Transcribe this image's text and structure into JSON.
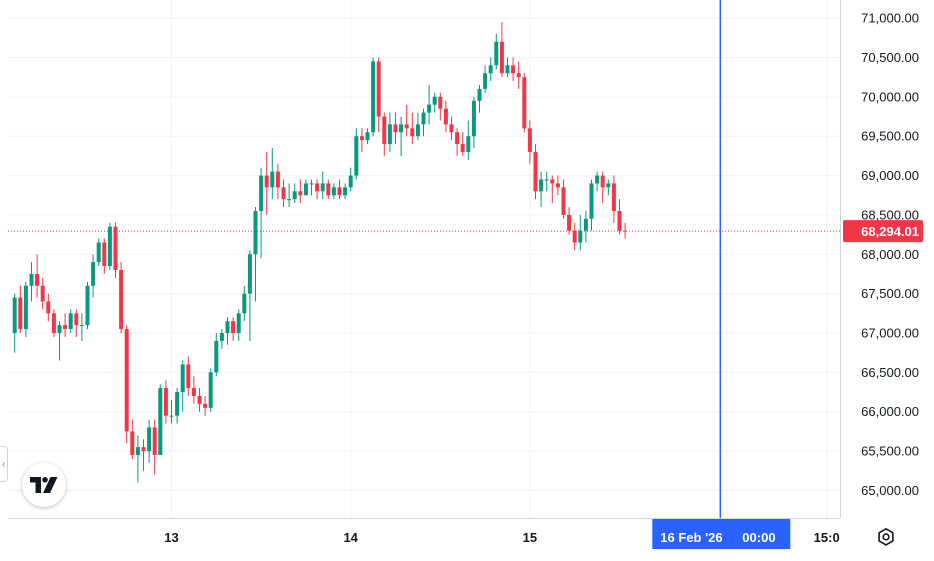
{
  "chart_data": {
    "type": "candlestick",
    "y_ticks": [
      "71,000.00",
      "70,500.00",
      "70,000.00",
      "69,500.00",
      "69,000.00",
      "68,500.00",
      "68,000.00",
      "67,500.00",
      "67,000.00",
      "66,500.00",
      "66,000.00",
      "65,500.00",
      "65,000.00"
    ],
    "y_tick_values": [
      71000,
      70500,
      70000,
      69500,
      69000,
      68500,
      68000,
      67500,
      67000,
      66500,
      66000,
      65500,
      65000
    ],
    "x_ticks": [
      {
        "label": "13",
        "bar_index": 28
      },
      {
        "label": "14",
        "bar_index": 60
      },
      {
        "label": "15",
        "bar_index": 92
      },
      {
        "label": "15:0",
        "bar_index": 145
      }
    ],
    "ylim": [
      64650,
      71230
    ],
    "grid": true,
    "current_price": 68294.01,
    "current_price_label": "68,294.01",
    "crosshair": {
      "bar_index": 126,
      "label_date": "16 Feb '26",
      "label_time": "00:00"
    },
    "candles": [
      [
        67000,
        67450,
        66750,
        67500
      ],
      [
        67450,
        67050,
        67000,
        67600
      ],
      [
        67050,
        67600,
        66950,
        67650
      ],
      [
        67600,
        67750,
        67400,
        67900
      ],
      [
        67750,
        67600,
        67450,
        68000
      ],
      [
        67600,
        67400,
        67300,
        67700
      ],
      [
        67400,
        67250,
        67150,
        67500
      ],
      [
        67250,
        67000,
        66950,
        67300
      ],
      [
        67000,
        67100,
        66650,
        67150
      ],
      [
        67100,
        67050,
        66950,
        67250
      ],
      [
        67050,
        67250,
        67000,
        67300
      ],
      [
        67250,
        67100,
        66950,
        67300
      ],
      [
        67100,
        67100,
        66900,
        67250
      ],
      [
        67100,
        67600,
        67050,
        67650
      ],
      [
        67600,
        67900,
        67450,
        68000
      ],
      [
        67900,
        68150,
        67850,
        68200
      ],
      [
        68150,
        67850,
        67750,
        68200
      ],
      [
        67850,
        68350,
        67800,
        68400
      ],
      [
        68350,
        67800,
        67700,
        68400
      ],
      [
        67800,
        67050,
        67000,
        67900
      ],
      [
        67050,
        65750,
        65600,
        67100
      ],
      [
        65750,
        65450,
        65400,
        65900
      ],
      [
        65450,
        65550,
        65100,
        65700
      ],
      [
        65550,
        65500,
        65250,
        65650
      ],
      [
        65500,
        65800,
        65350,
        65900
      ],
      [
        65800,
        65450,
        65200,
        65900
      ],
      [
        65450,
        66300,
        65450,
        66350
      ],
      [
        66300,
        65950,
        65850,
        66400
      ],
      [
        65950,
        65950,
        65850,
        66150
      ],
      [
        65950,
        66250,
        65850,
        66300
      ],
      [
        66250,
        66600,
        66000,
        66650
      ],
      [
        66600,
        66300,
        66200,
        66700
      ],
      [
        66300,
        66200,
        66100,
        66450
      ],
      [
        66200,
        66100,
        66000,
        66300
      ],
      [
        66100,
        66050,
        65950,
        66200
      ],
      [
        66050,
        66500,
        66000,
        66550
      ],
      [
        66500,
        66900,
        66450,
        67000
      ],
      [
        66900,
        67000,
        66800,
        67050
      ],
      [
        67000,
        67150,
        66850,
        67200
      ],
      [
        67150,
        67000,
        66900,
        67200
      ],
      [
        67000,
        67250,
        66900,
        67300
      ],
      [
        67250,
        67500,
        67150,
        67600
      ],
      [
        67500,
        68000,
        66900,
        68050
      ],
      [
        68000,
        68550,
        67400,
        68600
      ],
      [
        68550,
        69000,
        67950,
        69100
      ],
      [
        69000,
        68850,
        68500,
        69300
      ],
      [
        68850,
        69050,
        68700,
        69350
      ],
      [
        69050,
        68850,
        68700,
        69150
      ],
      [
        68850,
        68700,
        68600,
        68950
      ],
      [
        68700,
        68700,
        68600,
        68900
      ],
      [
        68700,
        68800,
        68650,
        68900
      ],
      [
        68800,
        68750,
        68650,
        68950
      ],
      [
        68750,
        68900,
        68750,
        68950
      ],
      [
        68900,
        68900,
        68750,
        68950
      ],
      [
        68900,
        68800,
        68700,
        68950
      ],
      [
        68800,
        68900,
        68700,
        69050
      ],
      [
        68900,
        68750,
        68700,
        68950
      ],
      [
        68750,
        68850,
        68700,
        68900
      ],
      [
        68850,
        68750,
        68700,
        68950
      ],
      [
        68750,
        68850,
        68700,
        68900
      ],
      [
        68850,
        69000,
        68800,
        69100
      ],
      [
        69000,
        69500,
        68950,
        69600
      ],
      [
        69500,
        69450,
        69300,
        69600
      ],
      [
        69450,
        69550,
        69400,
        69600
      ],
      [
        69550,
        70450,
        69500,
        70500
      ],
      [
        70450,
        69750,
        69550,
        70500
      ],
      [
        69750,
        69400,
        69250,
        69800
      ],
      [
        69400,
        69650,
        69300,
        69800
      ],
      [
        69650,
        69550,
        69400,
        69800
      ],
      [
        69550,
        69650,
        69250,
        69750
      ],
      [
        69650,
        69600,
        69500,
        69900
      ],
      [
        69600,
        69500,
        69400,
        69800
      ],
      [
        69500,
        69650,
        69450,
        69800
      ],
      [
        69650,
        69800,
        69500,
        69850
      ],
      [
        69800,
        69900,
        69650,
        70150
      ],
      [
        69900,
        70000,
        69800,
        70050
      ],
      [
        70000,
        69850,
        69700,
        70050
      ],
      [
        69850,
        69650,
        69550,
        69950
      ],
      [
        69650,
        69550,
        69450,
        69750
      ],
      [
        69550,
        69400,
        69250,
        69600
      ],
      [
        69400,
        69300,
        69250,
        69550
      ],
      [
        69300,
        69500,
        69200,
        69700
      ],
      [
        69500,
        69950,
        69350,
        70000
      ],
      [
        69950,
        70100,
        69800,
        70150
      ],
      [
        70100,
        70300,
        70050,
        70400
      ],
      [
        70300,
        70400,
        70200,
        70500
      ],
      [
        70400,
        70700,
        70350,
        70800
      ],
      [
        70700,
        70300,
        70250,
        70950
      ],
      [
        70300,
        70400,
        70250,
        70500
      ],
      [
        70400,
        70300,
        70200,
        70500
      ],
      [
        70300,
        70250,
        70100,
        70450
      ],
      [
        70250,
        69600,
        69550,
        70300
      ],
      [
        69600,
        69300,
        69150,
        69700
      ],
      [
        69300,
        68800,
        68700,
        69400
      ],
      [
        68800,
        68950,
        68600,
        69050
      ],
      [
        68950,
        68950,
        68800,
        69050
      ],
      [
        68950,
        68900,
        68650,
        69000
      ],
      [
        68900,
        68850,
        68750,
        69000
      ],
      [
        68850,
        68500,
        68450,
        68950
      ],
      [
        68500,
        68300,
        68250,
        68600
      ],
      [
        68300,
        68150,
        68050,
        68400
      ],
      [
        68150,
        68300,
        68050,
        68500
      ],
      [
        68300,
        68450,
        68150,
        68550
      ],
      [
        68450,
        68900,
        68300,
        68950
      ],
      [
        68900,
        69000,
        68800,
        69050
      ],
      [
        69000,
        68850,
        68650,
        69050
      ],
      [
        68850,
        68900,
        68750,
        68950
      ],
      [
        68900,
        68550,
        68400,
        69000
      ],
      [
        68550,
        68300,
        68250,
        68700
      ],
      [
        68300,
        68294.01,
        68200,
        68400
      ]
    ]
  },
  "colors": {
    "up": "#089981",
    "down": "#f23645",
    "grid": "#f0f3fa",
    "crosshair": "#2962ff",
    "axis_text": "#131722"
  },
  "logo": {
    "icon": "tradingview-logo-icon"
  },
  "settings": {
    "icon": "gear-icon"
  },
  "collapse": {
    "glyph": "‹"
  }
}
